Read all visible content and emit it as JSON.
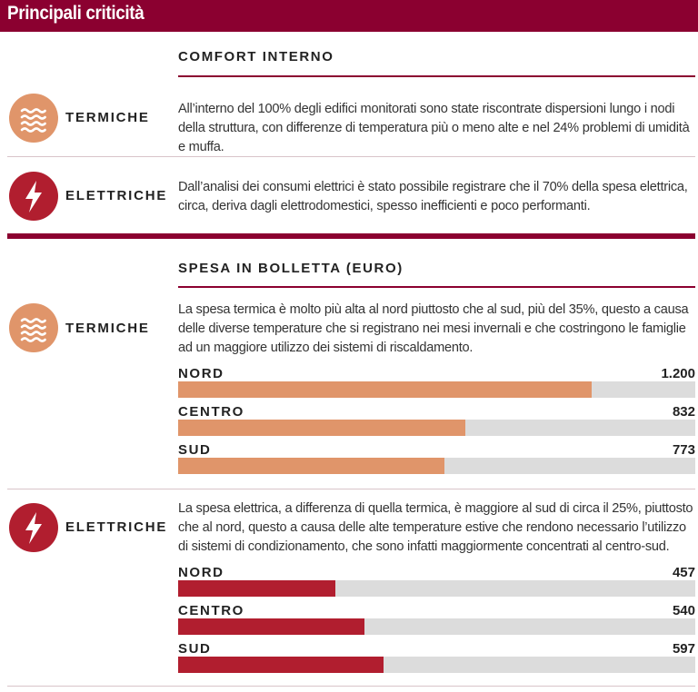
{
  "header": {
    "title": "Principali criticità"
  },
  "comfort": {
    "title": "COMFORT INTERNO",
    "rows": [
      {
        "label": "TERMICHE",
        "text": "All’interno del 100% degli edifici monitorati sono state riscontrate dispersioni lungo i nodi della struttura, con differenze di temperatura più o meno alte e nel 24% problemi di umidità e muffa."
      },
      {
        "label": "ELETTRICHE",
        "text": "Dall’analisi dei consumi elettrici è stato possibile registrare che il 70% della spesa elettrica, circa, deriva dagli elettrodomestici, spesso inefficienti e poco performanti."
      }
    ]
  },
  "spesa": {
    "title": "SPESA IN BOLLETTA (EURO)",
    "termiche": {
      "label": "TERMICHE",
      "text": "La spesa termica è molto più alta al nord piuttosto che al sud, più del 35%, questo a causa delle diverse temperature che si registrano nei mesi invernali e che costringono le famiglie ad un maggiore utilizzo dei sistemi di riscaldamento."
    },
    "elettriche": {
      "label": "ELETTRICHE",
      "text": "La spesa elettrica, a differenza di quella termica, è maggiore al sud di circa il 25%, piuttosto che al nord, questo a causa delle alte temperature estive che rendono necessario l’utilizzo di sistemi di condizionamento, che sono infatti maggiormente concentrati al centro-sud."
    }
  },
  "colors": {
    "brand": "#8b0030",
    "termiche": "#e0956a",
    "elettriche": "#b11e2f",
    "track": "#dcdcdc"
  },
  "icons": {
    "termiche": "heat-waves-icon",
    "elettriche": "lightning-bolt-icon"
  },
  "chart_data": [
    {
      "type": "bar",
      "orientation": "horizontal",
      "categories": [
        "NORD",
        "CENTRO",
        "SUD"
      ],
      "values": [
        1200,
        832,
        773
      ],
      "value_labels": [
        "1.200",
        "832",
        "773"
      ],
      "xlim": [
        0,
        1500
      ],
      "color": "#e0956a"
    },
    {
      "type": "bar",
      "orientation": "horizontal",
      "categories": [
        "NORD",
        "CENTRO",
        "SUD"
      ],
      "values": [
        457,
        540,
        597
      ],
      "value_labels": [
        "457",
        "540",
        "597"
      ],
      "xlim": [
        0,
        1500
      ],
      "color": "#b11e2f"
    }
  ]
}
